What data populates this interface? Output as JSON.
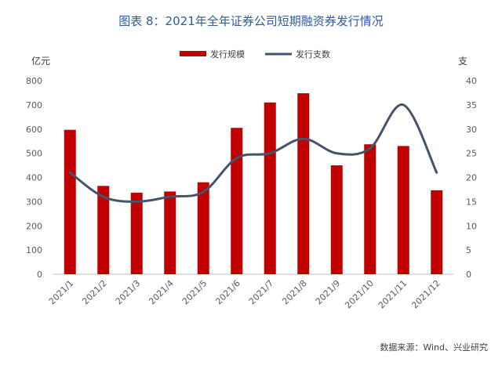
{
  "chart_data": {
    "type": "bar",
    "title": "图表 8：2021年全年证券公司短期融资券发行情况",
    "categories": [
      "2021/1",
      "2021/2",
      "2021/3",
      "2021/4",
      "2021/5",
      "2021/6",
      "2021/7",
      "2021/8",
      "2021/9",
      "2021/10",
      "2021/11",
      "2021/12"
    ],
    "series": [
      {
        "name": "发行规模",
        "type": "bar",
        "axis": "left",
        "values": [
          597,
          365,
          337,
          342,
          380,
          605,
          710,
          748,
          450,
          537,
          530,
          347
        ]
      },
      {
        "name": "发行支数",
        "type": "line",
        "axis": "right",
        "values": [
          21,
          16,
          15,
          16,
          17,
          24,
          25,
          28,
          25,
          26,
          35,
          21
        ]
      }
    ],
    "y_left": {
      "unit": "亿元",
      "min": 0,
      "max": 800,
      "ticks": [
        0,
        100,
        200,
        300,
        400,
        500,
        600,
        700,
        800
      ]
    },
    "y_right": {
      "unit": "支",
      "min": 0,
      "max": 40,
      "ticks": [
        0,
        5,
        10,
        15,
        20,
        25,
        30,
        35,
        40
      ]
    },
    "legend_position": "top-center",
    "grid": false,
    "colors": {
      "bar": "#c00000",
      "line": "#44546a",
      "title": "#2e5a9e"
    },
    "source": "数据来源：Wind、兴业研究"
  }
}
